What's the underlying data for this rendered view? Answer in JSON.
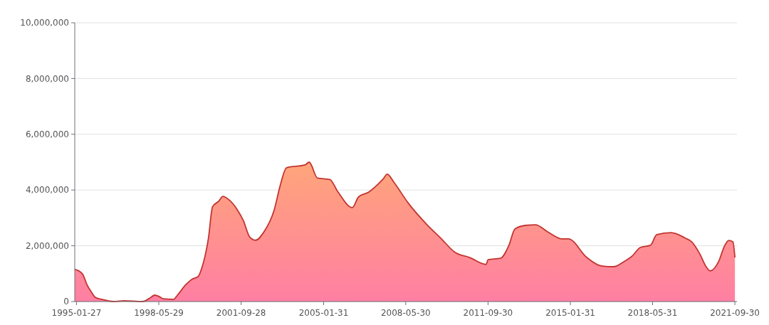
{
  "chart_data": {
    "type": "area",
    "x": [
      "1995-01",
      "1995-03",
      "1995-05",
      "1995-07",
      "1995-09",
      "1995-11",
      "1996-02",
      "1996-08",
      "1997-01",
      "1997-10",
      "1998-01",
      "1998-04",
      "1998-06",
      "1998-08",
      "1999-01",
      "1999-03",
      "1999-07",
      "1999-10",
      "2000-01",
      "2000-03",
      "2000-06",
      "2000-08",
      "2000-11",
      "2001-01",
      "2001-04",
      "2001-08",
      "2001-11",
      "2002-02",
      "2002-05",
      "2002-09",
      "2003-02",
      "2003-05",
      "2003-08",
      "2004-05",
      "2004-07",
      "2004-11",
      "2005-05",
      "2005-09",
      "2006-04",
      "2006-07",
      "2006-12",
      "2007-07",
      "2007-09",
      "2007-12",
      "2008-07",
      "2009-04",
      "2009-11",
      "2010-06",
      "2011-01",
      "2011-09",
      "2011-10",
      "2012-04",
      "2012-08",
      "2012-11",
      "2013-04",
      "2013-09",
      "2014-03",
      "2014-10",
      "2015-01",
      "2015-10",
      "2016-05",
      "2016-11",
      "2017-04",
      "2017-08",
      "2017-12",
      "2018-05",
      "2018-08",
      "2019-03",
      "2019-10",
      "2020-01",
      "2020-05",
      "2020-08",
      "2020-10",
      "2021-02",
      "2021-05",
      "2021-07",
      "2021-09",
      "2021-10"
    ],
    "series": [
      {
        "color": "#c23531",
        "values": [
          1150000,
          1100000,
          970000,
          600000,
          350000,
          150000,
          80000,
          0,
          30000,
          0,
          100000,
          230000,
          180000,
          100000,
          80000,
          230000,
          600000,
          800000,
          900000,
          1250000,
          2270000,
          3400000,
          3600000,
          3770000,
          3650000,
          3300000,
          2900000,
          2320000,
          2200000,
          2500000,
          3300000,
          4180000,
          4800000,
          4900000,
          5000000,
          4430000,
          4380000,
          3930000,
          3370000,
          3750000,
          3930000,
          4400000,
          4570000,
          4300000,
          3550000,
          2780000,
          2270000,
          1760000,
          1580000,
          1330000,
          1500000,
          1550000,
          2000000,
          2600000,
          2730000,
          2750000,
          2500000,
          2250000,
          2250000,
          1580000,
          1280000,
          1250000,
          1430000,
          1630000,
          1940000,
          2020000,
          2400000,
          2470000,
          2270000,
          2140000,
          1700000,
          1250000,
          1100000,
          1430000,
          2000000,
          2190000,
          2140000,
          1580000
        ]
      }
    ],
    "xlim": [
      "1995-01-01",
      "2021-10-31"
    ],
    "xticks": [
      "1995-01-27",
      "1998-05-29",
      "2001-09-28",
      "2005-01-31",
      "2008-05-30",
      "2011-09-30",
      "2015-01-31",
      "2018-05-31",
      "2021-09-30"
    ],
    "ylim": [
      0,
      10000000
    ],
    "yticks": [
      {
        "value": 0,
        "label": "0"
      },
      {
        "value": 2000000,
        "label": "2,000,000"
      },
      {
        "value": 4000000,
        "label": "4,000,000"
      },
      {
        "value": 6000000,
        "label": "6,000,000"
      },
      {
        "value": 8000000,
        "label": "8,000,000"
      },
      {
        "value": 10000000,
        "label": "10,000,000"
      }
    ],
    "grid": "y"
  }
}
